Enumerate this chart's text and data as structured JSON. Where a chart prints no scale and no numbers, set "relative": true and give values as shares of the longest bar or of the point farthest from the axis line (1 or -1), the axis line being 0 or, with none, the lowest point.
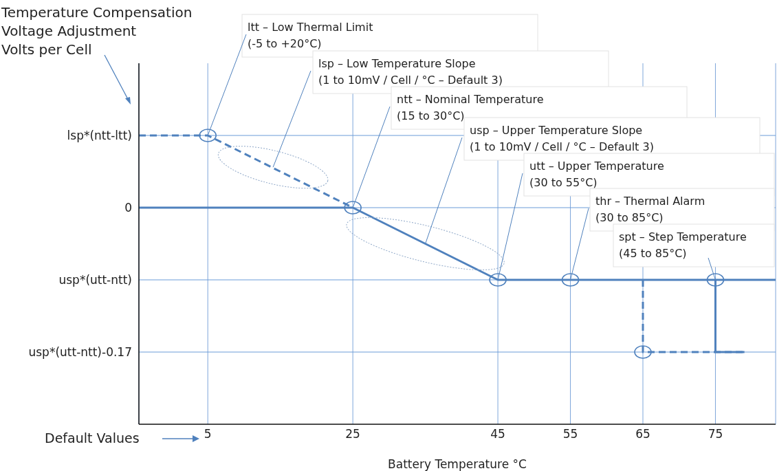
{
  "chart_data": {
    "type": "line",
    "xlabel": "Battery Temperature °C",
    "relative": true,
    "xlim": [
      -4.5,
      83.3
    ],
    "xticks": [
      5,
      25,
      45,
      55,
      65,
      75
    ],
    "grid": "x",
    "series": [
      {
        "color": "#4f81bd",
        "line_style": "dashed",
        "marker": "none",
        "x": [
          -4.5,
          5,
          25
        ],
        "values": [
          0.5,
          0.5,
          0
        ]
      },
      {
        "color": "#4f81bd",
        "line_style": "solid",
        "marker": "none",
        "x": [
          -4.5,
          25,
          45,
          83.3
        ],
        "values": [
          0,
          0,
          -0.5,
          -0.5
        ]
      },
      {
        "color": "#4f81bd",
        "line_style": "dashed",
        "marker": "none",
        "x": [
          65,
          65,
          79
        ],
        "values": [
          -0.5,
          -1,
          -1
        ]
      },
      {
        "color": "#4f81bd",
        "line_style": "solid",
        "marker": "none",
        "x": [
          75,
          75,
          79
        ],
        "values": [
          -0.5,
          -1,
          -1
        ]
      },
      {
        "type": "scatter",
        "color": "#4f81bd",
        "marker": "circle",
        "x": [
          5,
          25,
          45,
          55,
          65,
          75
        ],
        "values": [
          0.5,
          0,
          -0.5,
          -0.5,
          -1,
          -0.5
        ]
      }
    ],
    "ref_lines": [
      {
        "axis": "y",
        "value": 0.5,
        "label": "lsp*(ntt-ltt)",
        "color": "#6a9bd8"
      },
      {
        "axis": "y",
        "value": 0,
        "label": "0",
        "color": "#6a9bd8"
      },
      {
        "axis": "y",
        "value": -0.5,
        "label": "usp*(utt-ntt)",
        "color": "#6a9bd8"
      },
      {
        "axis": "y",
        "value": -1,
        "label": "usp*(utt-ntt)-0.17",
        "color": "#6a9bd8"
      }
    ],
    "annotations": [
      {
        "text": "ltt – Low Thermal Limit\n(-5 to +20°C)",
        "x": 5,
        "y": 0.5
      },
      {
        "text": "lsp – Low Temperature Slope\n(1 to 10mV / Cell / °C – Default 3)",
        "x": 14,
        "y": 0.28
      },
      {
        "text": "ntt – Nominal Temperature\n(15 to 30°C)",
        "x": 25,
        "y": 0
      },
      {
        "text": "usp – Upper Temperature Slope\n(1 to 10mV / Cell / °C – Default 3)",
        "x": 35,
        "y": -0.25
      },
      {
        "text": "utt – Upper Temperature\n(30 to 55°C)",
        "x": 45,
        "y": -0.5
      },
      {
        "text": "thr – Thermal Alarm\n(30 to 85°C)",
        "x": 55,
        "y": -0.5
      },
      {
        "text": "spt – Step Temperature\n(45 to 85°C)",
        "x": 75,
        "y": -0.5
      },
      "Temperature Compensation\nVoltage Adjustment\nVolts per Cell",
      "Default Values"
    ]
  }
}
